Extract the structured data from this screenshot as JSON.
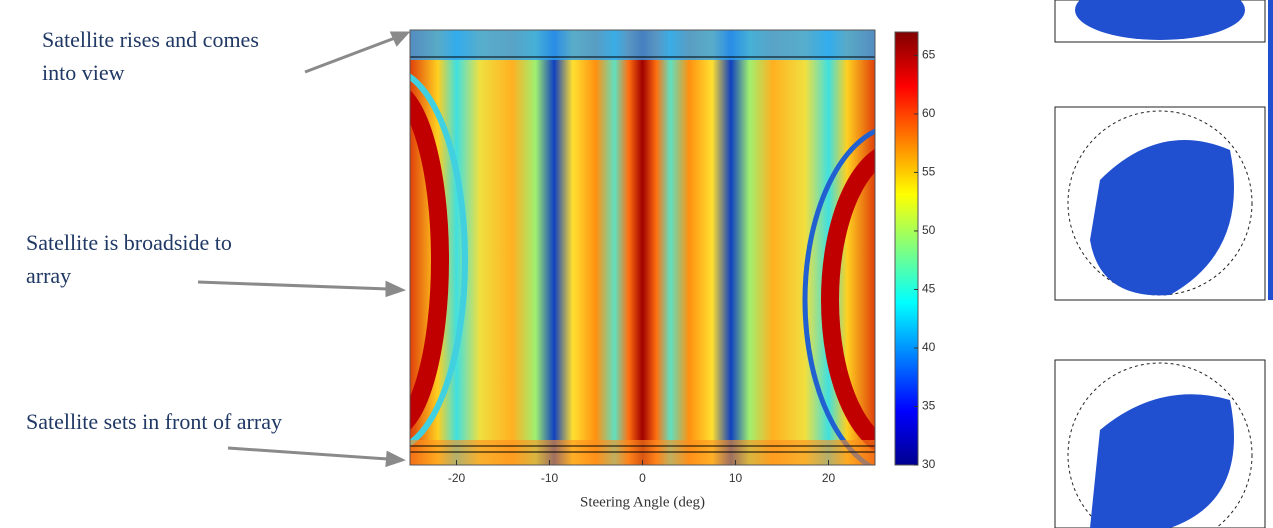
{
  "annotations": [
    {
      "lines": [
        "Satellite rises and comes",
        "into view"
      ]
    },
    {
      "lines": [
        "Satellite is broadside to",
        "array"
      ]
    },
    {
      "lines": [
        "Satellite sets in front of array"
      ]
    }
  ],
  "chart_data": {
    "type": "heatmap",
    "xlabel": "Steering Angle (deg)",
    "xlim": [
      -25,
      25
    ],
    "xticks": [
      -20,
      -10,
      0,
      10,
      20
    ],
    "colorbar": {
      "clim": [
        30,
        67
      ],
      "ticks": [
        30,
        35,
        40,
        45,
        50,
        55,
        60,
        65
      ]
    }
  }
}
